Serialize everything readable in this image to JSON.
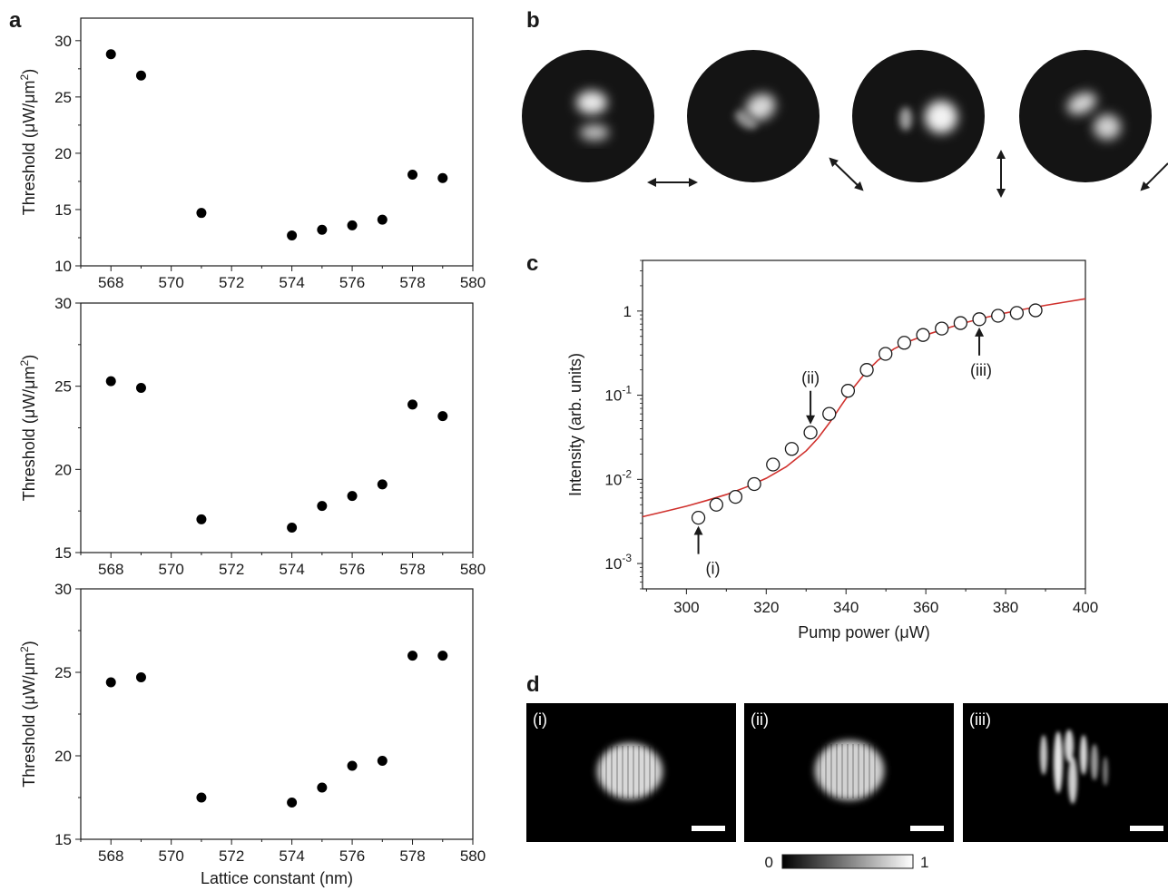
{
  "panels": {
    "a": {
      "letter": "a"
    },
    "b": {
      "letter": "b"
    },
    "c": {
      "letter": "c"
    },
    "d": {
      "letter": "d"
    }
  },
  "chart_data": [
    {
      "id": "a1",
      "type": "scatter",
      "ylabel": "Threshold (μW/μm²)",
      "xlabel": "",
      "xlim": [
        567,
        580
      ],
      "ylim": [
        10,
        32
      ],
      "xticks": [
        568,
        570,
        572,
        574,
        576,
        578,
        580
      ],
      "yticks": [
        10,
        15,
        20,
        25,
        30
      ],
      "x": [
        568,
        569,
        571,
        574,
        575,
        576,
        577,
        578,
        579
      ],
      "y": [
        28.8,
        26.9,
        14.7,
        12.7,
        13.2,
        13.6,
        14.1,
        18.1,
        17.8
      ]
    },
    {
      "id": "a2",
      "type": "scatter",
      "ylabel": "Threshold (μW/μm²)",
      "xlabel": "",
      "xlim": [
        567,
        580
      ],
      "ylim": [
        15,
        30
      ],
      "xticks": [
        568,
        570,
        572,
        574,
        576,
        578,
        580
      ],
      "yticks": [
        15,
        20,
        25,
        30
      ],
      "x": [
        568,
        569,
        571,
        574,
        575,
        576,
        577,
        578,
        579
      ],
      "y": [
        25.3,
        24.9,
        17.0,
        16.5,
        17.8,
        18.4,
        19.1,
        23.9,
        23.2
      ]
    },
    {
      "id": "a3",
      "type": "scatter",
      "ylabel": "Threshold (μW/μm²)",
      "xlabel": "Lattice constant (nm)",
      "xlim": [
        567,
        580
      ],
      "ylim": [
        15,
        30
      ],
      "xticks": [
        568,
        570,
        572,
        574,
        576,
        578,
        580
      ],
      "yticks": [
        15,
        20,
        25,
        30
      ],
      "x": [
        568,
        569,
        571,
        574,
        575,
        576,
        577,
        578,
        579
      ],
      "y": [
        24.4,
        24.7,
        17.5,
        17.2,
        18.1,
        19.4,
        19.7,
        26.0,
        26.0
      ]
    },
    {
      "id": "c",
      "type": "scatter",
      "scale_y": "log",
      "ylabel": "Intensity (arb. units)",
      "xlabel": "Pump power (μW)",
      "xlim": [
        289,
        400
      ],
      "ylim": [
        0.0005,
        4
      ],
      "xticks": [
        300,
        320,
        340,
        360,
        380,
        400
      ],
      "yticks": [
        {
          "v": 1,
          "base": "1",
          "exp": ""
        },
        {
          "v": 0.1,
          "base": "10",
          "exp": "-1"
        },
        {
          "v": 0.01,
          "base": "10",
          "exp": "-2"
        },
        {
          "v": 0.001,
          "base": "10",
          "exp": "-3"
        }
      ],
      "series": [
        {
          "kind": "markers",
          "marker": "open-circle",
          "x": [
            303,
            307.5,
            312.3,
            317,
            321.7,
            326.4,
            331.1,
            335.8,
            340.5,
            345.2,
            349.9,
            354.6,
            359.3,
            364,
            368.7,
            373.4,
            378.1,
            382.8,
            387.5
          ],
          "y": [
            0.0035,
            0.005,
            0.0062,
            0.0088,
            0.015,
            0.023,
            0.036,
            0.06,
            0.113,
            0.2,
            0.31,
            0.42,
            0.52,
            0.62,
            0.72,
            0.8,
            0.88,
            0.95,
            1.02
          ]
        },
        {
          "kind": "line",
          "color": "#d0312d",
          "x": [
            289,
            295,
            300,
            305,
            310,
            315,
            320,
            325,
            330,
            333,
            336,
            339,
            342,
            345,
            348,
            352,
            356,
            360,
            365,
            370,
            375,
            380,
            385,
            390,
            395,
            400
          ],
          "y": [
            0.0036,
            0.0042,
            0.0048,
            0.0056,
            0.0066,
            0.0081,
            0.0103,
            0.0141,
            0.0218,
            0.031,
            0.048,
            0.078,
            0.125,
            0.188,
            0.26,
            0.355,
            0.44,
            0.52,
            0.62,
            0.73,
            0.84,
            0.95,
            1.06,
            1.17,
            1.28,
            1.4
          ]
        }
      ],
      "annotations": [
        {
          "text": "(i)",
          "x": 303,
          "y": 0.0035,
          "dir": "up"
        },
        {
          "text": "(ii)",
          "x": 331.1,
          "y": 0.036,
          "dir": "down"
        },
        {
          "text": "(iii)",
          "x": 373.4,
          "y": 0.8,
          "dir": "up"
        }
      ]
    }
  ],
  "mode_images": {
    "polarization_arrows": [
      "horizontal",
      "diagonal",
      "vertical",
      "diagonal"
    ]
  },
  "nearfield_images": {
    "labels": [
      "(i)",
      "(ii)",
      "(iii)"
    ],
    "colorbar": {
      "min": "0",
      "max": "1"
    }
  }
}
